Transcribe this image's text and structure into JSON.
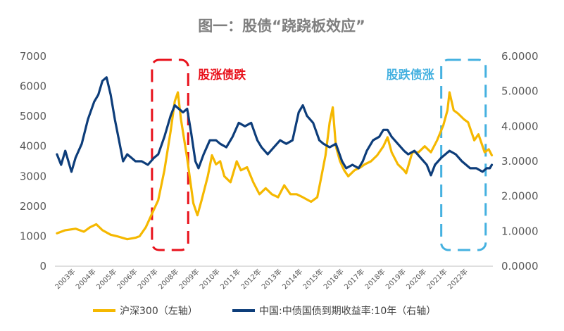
{
  "chart_data": {
    "type": "line",
    "title": "图一：股债“跷跷板效应”",
    "x_labels": [
      "2003年",
      "2004年",
      "2005年",
      "2006年",
      "2007年",
      "2008年",
      "2009年",
      "2010年",
      "2011年",
      "2012年",
      "2013年",
      "2014年",
      "2015年",
      "2016年",
      "2017年",
      "2018年",
      "2019年",
      "2020年",
      "2021年",
      "2022年"
    ],
    "left_axis": {
      "ylim": [
        0,
        7000
      ],
      "ticks": [
        "0",
        "1000",
        "2000",
        "3000",
        "4000",
        "5000",
        "6000",
        "7000"
      ]
    },
    "right_axis": {
      "ylim": [
        0,
        6
      ],
      "ticks": [
        "0.0000",
        "1.0000",
        "2.0000",
        "3.0000",
        "4.0000",
        "5.0000",
        "6.0000"
      ]
    },
    "grid": false,
    "legend_position": "bottom",
    "series": [
      {
        "name": "沪深300（左轴）",
        "axis": "left",
        "color": "#f5b800",
        "points": [
          [
            2002.1,
            1100
          ],
          [
            2002.5,
            1200
          ],
          [
            2003.0,
            1250
          ],
          [
            2003.4,
            1150
          ],
          [
            2003.7,
            1300
          ],
          [
            2004.0,
            1400
          ],
          [
            2004.3,
            1200
          ],
          [
            2004.7,
            1050
          ],
          [
            2005.0,
            1000
          ],
          [
            2005.5,
            900
          ],
          [
            2005.9,
            950
          ],
          [
            2006.1,
            1000
          ],
          [
            2006.4,
            1300
          ],
          [
            2006.8,
            1900
          ],
          [
            2007.0,
            2200
          ],
          [
            2007.3,
            3200
          ],
          [
            2007.6,
            4500
          ],
          [
            2007.8,
            5500
          ],
          [
            2007.95,
            5800
          ],
          [
            2008.1,
            4900
          ],
          [
            2008.4,
            3600
          ],
          [
            2008.7,
            2100
          ],
          [
            2008.9,
            1700
          ],
          [
            2009.1,
            2200
          ],
          [
            2009.4,
            3000
          ],
          [
            2009.6,
            3700
          ],
          [
            2009.8,
            3400
          ],
          [
            2010.0,
            3500
          ],
          [
            2010.2,
            3000
          ],
          [
            2010.5,
            2800
          ],
          [
            2010.8,
            3500
          ],
          [
            2011.0,
            3200
          ],
          [
            2011.3,
            3300
          ],
          [
            2011.6,
            2800
          ],
          [
            2011.9,
            2400
          ],
          [
            2012.2,
            2600
          ],
          [
            2012.5,
            2400
          ],
          [
            2012.8,
            2300
          ],
          [
            2013.1,
            2700
          ],
          [
            2013.4,
            2400
          ],
          [
            2013.7,
            2400
          ],
          [
            2014.0,
            2300
          ],
          [
            2014.4,
            2150
          ],
          [
            2014.7,
            2300
          ],
          [
            2014.9,
            3000
          ],
          [
            2015.1,
            3700
          ],
          [
            2015.3,
            4800
          ],
          [
            2015.45,
            5300
          ],
          [
            2015.6,
            4000
          ],
          [
            2015.8,
            3500
          ],
          [
            2016.0,
            3200
          ],
          [
            2016.2,
            3000
          ],
          [
            2016.5,
            3200
          ],
          [
            2016.8,
            3300
          ],
          [
            2017.0,
            3400
          ],
          [
            2017.3,
            3500
          ],
          [
            2017.6,
            3700
          ],
          [
            2017.9,
            4000
          ],
          [
            2018.1,
            4300
          ],
          [
            2018.3,
            3800
          ],
          [
            2018.6,
            3400
          ],
          [
            2018.9,
            3200
          ],
          [
            2019.0,
            3100
          ],
          [
            2019.3,
            3800
          ],
          [
            2019.6,
            3800
          ],
          [
            2019.9,
            4000
          ],
          [
            2020.2,
            3800
          ],
          [
            2020.5,
            4200
          ],
          [
            2020.8,
            4700
          ],
          [
            2021.0,
            5200
          ],
          [
            2021.1,
            5800
          ],
          [
            2021.3,
            5200
          ],
          [
            2021.5,
            5100
          ],
          [
            2021.8,
            4900
          ],
          [
            2022.0,
            4800
          ],
          [
            2022.3,
            4200
          ],
          [
            2022.5,
            4400
          ],
          [
            2022.8,
            3800
          ],
          [
            2023.0,
            3900
          ],
          [
            2023.15,
            3700
          ]
        ]
      },
      {
        "name": "中国:中债国债到期收益率:10年（右轴）",
        "axis": "right",
        "color": "#0d3d7a",
        "points": [
          [
            2002.1,
            3.2
          ],
          [
            2002.3,
            2.9
          ],
          [
            2002.5,
            3.3
          ],
          [
            2002.8,
            2.7
          ],
          [
            2003.0,
            3.1
          ],
          [
            2003.3,
            3.5
          ],
          [
            2003.6,
            4.2
          ],
          [
            2003.9,
            4.7
          ],
          [
            2004.1,
            4.9
          ],
          [
            2004.3,
            5.3
          ],
          [
            2004.5,
            5.4
          ],
          [
            2004.7,
            4.9
          ],
          [
            2004.9,
            4.2
          ],
          [
            2005.1,
            3.6
          ],
          [
            2005.3,
            3.0
          ],
          [
            2005.5,
            3.2
          ],
          [
            2005.7,
            3.1
          ],
          [
            2005.9,
            3.0
          ],
          [
            2006.2,
            3.0
          ],
          [
            2006.5,
            2.9
          ],
          [
            2006.8,
            3.1
          ],
          [
            2007.0,
            3.2
          ],
          [
            2007.3,
            3.7
          ],
          [
            2007.6,
            4.3
          ],
          [
            2007.8,
            4.6
          ],
          [
            2008.0,
            4.5
          ],
          [
            2008.2,
            4.4
          ],
          [
            2008.4,
            4.5
          ],
          [
            2008.6,
            3.8
          ],
          [
            2008.8,
            3.0
          ],
          [
            2008.95,
            2.8
          ],
          [
            2009.2,
            3.2
          ],
          [
            2009.5,
            3.6
          ],
          [
            2009.8,
            3.6
          ],
          [
            2010.0,
            3.5
          ],
          [
            2010.3,
            3.4
          ],
          [
            2010.6,
            3.7
          ],
          [
            2010.9,
            4.1
          ],
          [
            2011.2,
            4.0
          ],
          [
            2011.5,
            4.1
          ],
          [
            2011.8,
            3.6
          ],
          [
            2012.0,
            3.4
          ],
          [
            2012.3,
            3.2
          ],
          [
            2012.6,
            3.4
          ],
          [
            2012.9,
            3.6
          ],
          [
            2013.2,
            3.5
          ],
          [
            2013.5,
            3.6
          ],
          [
            2013.8,
            4.4
          ],
          [
            2014.0,
            4.6
          ],
          [
            2014.2,
            4.3
          ],
          [
            2014.5,
            4.1
          ],
          [
            2014.8,
            3.6
          ],
          [
            2015.0,
            3.5
          ],
          [
            2015.3,
            3.4
          ],
          [
            2015.6,
            3.5
          ],
          [
            2015.9,
            3.0
          ],
          [
            2016.1,
            2.8
          ],
          [
            2016.4,
            2.9
          ],
          [
            2016.7,
            2.8
          ],
          [
            2016.9,
            3.0
          ],
          [
            2017.1,
            3.3
          ],
          [
            2017.4,
            3.6
          ],
          [
            2017.7,
            3.7
          ],
          [
            2017.9,
            3.9
          ],
          [
            2018.1,
            3.9
          ],
          [
            2018.3,
            3.7
          ],
          [
            2018.6,
            3.5
          ],
          [
            2018.9,
            3.3
          ],
          [
            2019.1,
            3.2
          ],
          [
            2019.4,
            3.3
          ],
          [
            2019.7,
            3.1
          ],
          [
            2020.0,
            2.9
          ],
          [
            2020.2,
            2.6
          ],
          [
            2020.4,
            2.9
          ],
          [
            2020.7,
            3.1
          ],
          [
            2020.9,
            3.2
          ],
          [
            2021.1,
            3.3
          ],
          [
            2021.4,
            3.2
          ],
          [
            2021.7,
            3.0
          ],
          [
            2021.9,
            2.9
          ],
          [
            2022.1,
            2.8
          ],
          [
            2022.4,
            2.8
          ],
          [
            2022.7,
            2.7
          ],
          [
            2022.9,
            2.8
          ],
          [
            2023.05,
            2.8
          ],
          [
            2023.15,
            2.9
          ]
        ]
      }
    ],
    "annotations": [
      {
        "text": "股涨债跌",
        "color": "#e8121c",
        "x_range": [
          2006.7,
          2008.45
        ]
      },
      {
        "text": "股跌债涨",
        "color": "#45b1e0",
        "x_range": [
          2020.7,
          2022.85
        ]
      }
    ]
  }
}
